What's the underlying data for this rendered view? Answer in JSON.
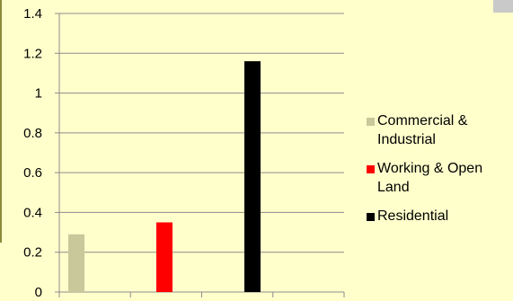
{
  "chart_data": {
    "type": "bar",
    "title": "",
    "xlabel": "",
    "ylabel": "",
    "ylim": [
      0,
      1.4
    ],
    "yticks": [
      0,
      0.2,
      0.4,
      0.6,
      0.8,
      1,
      1.2,
      1.4
    ],
    "ytick_labels": [
      "0",
      "0.2",
      "0.4",
      "0.6",
      "0.8",
      "1",
      "1.2",
      "1.4"
    ],
    "grid": true,
    "legend_position": "right",
    "series": [
      {
        "name": "Commercial & Industrial",
        "value": 0.29,
        "color": "#c8c89b"
      },
      {
        "name": "Working & Open Land",
        "value": 0.35,
        "color": "#ff0000"
      },
      {
        "name": "Residential",
        "value": 1.16,
        "color": "#000000"
      }
    ],
    "legend": [
      {
        "lines": [
          "Commercial &",
          "Industrial"
        ],
        "color": "#c8c89b"
      },
      {
        "lines": [
          "Working & Open",
          "Land"
        ],
        "color": "#ff0000"
      },
      {
        "lines": [
          "Residential"
        ],
        "color": "#000000"
      }
    ]
  }
}
